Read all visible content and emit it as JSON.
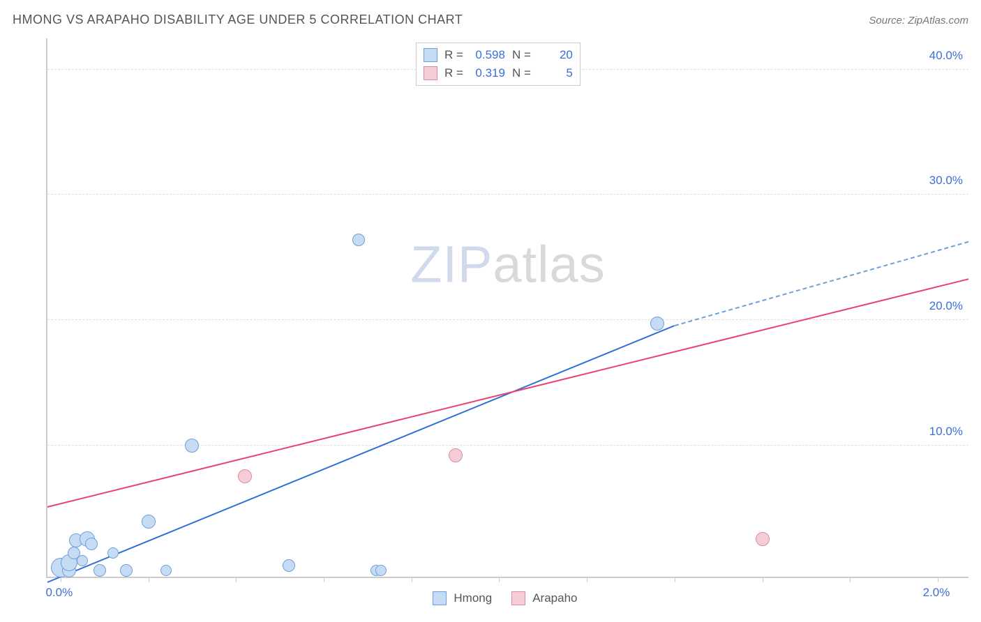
{
  "header": {
    "title": "HMONG VS ARAPAHO DISABILITY AGE UNDER 5 CORRELATION CHART",
    "source_prefix": "Source: ",
    "source": "ZipAtlas.com"
  },
  "ylabel": "Disability Age Under 5",
  "watermark": {
    "part1": "ZIP",
    "part2": "atlas"
  },
  "axes": {
    "xlim": [
      -0.03,
      2.07
    ],
    "ylim": [
      -0.5,
      42.5
    ],
    "xticks": [
      0.0,
      0.2,
      0.4,
      0.6,
      0.8,
      1.0,
      1.2,
      1.4,
      1.6,
      1.8,
      2.0
    ],
    "xtick_labels_shown": {
      "0": "0.0%",
      "10": "2.0%"
    },
    "yticks": [
      10.0,
      20.0,
      30.0,
      40.0
    ],
    "ytick_labels": [
      "10.0%",
      "20.0%",
      "30.0%",
      "40.0%"
    ],
    "xlabel_color": "#3b6fd6",
    "ylabel_color": "#3b6fd6",
    "grid_color": "#dddddd",
    "axis_color": "#cccccc",
    "background_color": "#ffffff"
  },
  "series": {
    "hmong": {
      "label": "Hmong",
      "fill": "#c6dbf4",
      "stroke": "#6f9fd8",
      "line_color": "#2e6fd6",
      "line_dash_color": "#6f9fd8",
      "R": "0.598",
      "N": "20",
      "regression": {
        "x0": -0.03,
        "y0": -1.0,
        "x1": 1.4,
        "y1": 19.5,
        "x_solid_end": 1.4,
        "x_dash_end": 2.07,
        "y_dash_end": 26.2
      },
      "points": [
        {
          "x": 0.0,
          "y": 0.0,
          "r": 10
        },
        {
          "x": 0.0,
          "y": 0.2,
          "r": 14
        },
        {
          "x": 0.02,
          "y": 0.0,
          "r": 10
        },
        {
          "x": 0.02,
          "y": 0.6,
          "r": 12
        },
        {
          "x": 0.03,
          "y": 1.4,
          "r": 9
        },
        {
          "x": 0.035,
          "y": 2.4,
          "r": 10
        },
        {
          "x": 0.05,
          "y": 0.8,
          "r": 8
        },
        {
          "x": 0.06,
          "y": 2.5,
          "r": 11
        },
        {
          "x": 0.07,
          "y": 2.1,
          "r": 9
        },
        {
          "x": 0.09,
          "y": 0.0,
          "r": 9
        },
        {
          "x": 0.12,
          "y": 1.4,
          "r": 8
        },
        {
          "x": 0.15,
          "y": 0.0,
          "r": 9
        },
        {
          "x": 0.2,
          "y": 3.9,
          "r": 10
        },
        {
          "x": 0.24,
          "y": 0.0,
          "r": 8
        },
        {
          "x": 0.3,
          "y": 10.0,
          "r": 10
        },
        {
          "x": 0.52,
          "y": 0.4,
          "r": 9
        },
        {
          "x": 0.72,
          "y": 0.0,
          "r": 8
        },
        {
          "x": 0.73,
          "y": 0.0,
          "r": 8
        },
        {
          "x": 0.68,
          "y": 26.4,
          "r": 9
        },
        {
          "x": 1.36,
          "y": 19.7,
          "r": 10
        }
      ]
    },
    "arapaho": {
      "label": "Arapaho",
      "fill": "#f4cdd7",
      "stroke": "#e08aa0",
      "line_color": "#e6446e",
      "R": "0.319",
      "N": "5",
      "regression": {
        "x0": -0.03,
        "y0": 5.0,
        "x1": 2.07,
        "y1": 23.2
      },
      "points": [
        {
          "x": 0.0,
          "y": 0.3,
          "r": 10
        },
        {
          "x": 0.02,
          "y": 0.5,
          "r": 8
        },
        {
          "x": 0.42,
          "y": 7.5,
          "r": 10
        },
        {
          "x": 0.9,
          "y": 9.2,
          "r": 10
        },
        {
          "x": 1.6,
          "y": 2.5,
          "r": 10
        }
      ]
    }
  },
  "stats_box": {
    "R_label": "R =",
    "N_label": "N ="
  },
  "legend": {
    "hmong": "Hmong",
    "arapaho": "Arapaho"
  }
}
